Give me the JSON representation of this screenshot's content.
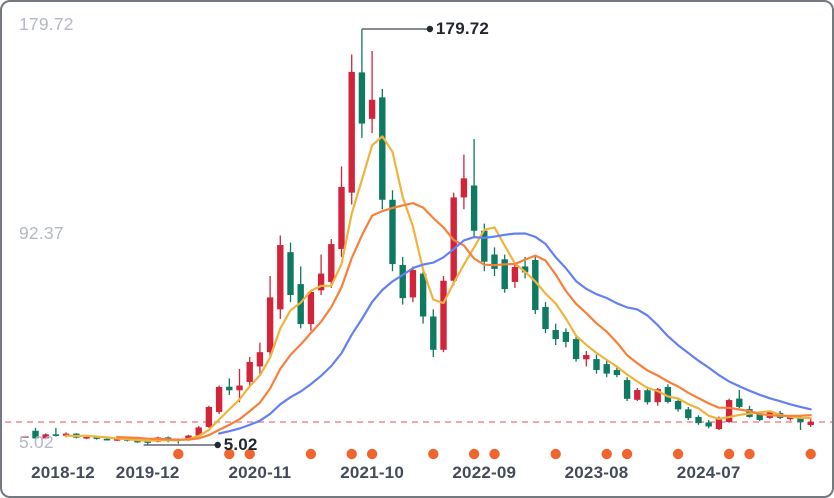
{
  "chart_data": {
    "type": "candlestick",
    "title": "",
    "frequency": "monthly",
    "legend_position": "none",
    "grid": false,
    "y_range": [
      5.02,
      179.72
    ],
    "y_axis_labels": [
      "179.72",
      "92.37",
      "5.02"
    ],
    "x_tick_labels": [
      {
        "index": 0,
        "text": "2018-12"
      },
      {
        "index": 12,
        "text": "2019-12"
      },
      {
        "index": 23,
        "text": "2020-11"
      },
      {
        "index": 34,
        "text": "2021-10"
      },
      {
        "index": 45,
        "text": "2022-09"
      },
      {
        "index": 56,
        "text": "2023-08"
      },
      {
        "index": 67,
        "text": "2024-07"
      }
    ],
    "up_color": "#d2253c",
    "down_color": "#0e7a61",
    "candles": [
      [
        "2018-12",
        8.4,
        8.9,
        8.1,
        8.7
      ],
      [
        "2019-01",
        11.0,
        12.2,
        7.4,
        7.8
      ],
      [
        "2019-02",
        7.8,
        9.9,
        7.5,
        9.5
      ],
      [
        "2019-03",
        9.5,
        12.2,
        8.6,
        8.9
      ],
      [
        "2019-04",
        8.9,
        10.3,
        8.3,
        9.8
      ],
      [
        "2019-05",
        9.8,
        10.0,
        7.8,
        8.1
      ],
      [
        "2019-06",
        8.1,
        8.8,
        7.5,
        8.4
      ],
      [
        "2019-07",
        8.4,
        8.7,
        7.3,
        7.6
      ],
      [
        "2019-08",
        7.6,
        8.0,
        6.9,
        7.2
      ],
      [
        "2019-09",
        7.2,
        7.8,
        6.7,
        7.5
      ],
      [
        "2019-10",
        7.5,
        7.7,
        6.5,
        6.8
      ],
      [
        "2019-11",
        6.8,
        7.1,
        5.9,
        6.2
      ],
      [
        "2019-12",
        6.6,
        6.9,
        5.02,
        6.3
      ],
      [
        "2020-01",
        6.4,
        8.5,
        6.2,
        8.2
      ],
      [
        "2020-02",
        8.2,
        8.6,
        6.2,
        7.4
      ],
      [
        "2020-03",
        7.5,
        7.8,
        5.6,
        6.9
      ],
      [
        "2020-04",
        7.0,
        9.3,
        6.8,
        9.0
      ],
      [
        "2020-05",
        9.0,
        13.0,
        8.7,
        12.4
      ],
      [
        "2020-06",
        12.6,
        21.5,
        12.2,
        21.0
      ],
      [
        "2020-07",
        18.9,
        30.0,
        18.0,
        29.4
      ],
      [
        "2020-08",
        29.5,
        33.0,
        26.0,
        28.0
      ],
      [
        "2020-09",
        28.0,
        37.0,
        23.0,
        30.0
      ],
      [
        "2020-10",
        31.5,
        42.0,
        30.0,
        39.9
      ],
      [
        "2020-11",
        38.0,
        48.0,
        35.0,
        44.0
      ],
      [
        "2020-12",
        44.0,
        76.0,
        42.0,
        67.0
      ],
      [
        "2021-01",
        62.0,
        93.0,
        58.0,
        89.0
      ],
      [
        "2021-02",
        86.0,
        90.0,
        65.0,
        68.0
      ],
      [
        "2021-03",
        72.6,
        80.0,
        54.0,
        55.8
      ],
      [
        "2021-04",
        55.8,
        70.0,
        53.0,
        69.3
      ],
      [
        "2021-05",
        70.0,
        85.0,
        68.0,
        77.0
      ],
      [
        "2021-06",
        73.5,
        91.5,
        71.0,
        89.4
      ],
      [
        "2021-07",
        87.3,
        122.0,
        84.0,
        113.4
      ],
      [
        "2021-08",
        111.0,
        169.0,
        106.0,
        161.7
      ],
      [
        "2021-09",
        161.5,
        179.72,
        134.0,
        140.0
      ],
      [
        "2021-10",
        142.0,
        170.5,
        136.0,
        150.0
      ],
      [
        "2021-11",
        151.0,
        154.5,
        104.0,
        108.0
      ],
      [
        "2021-12",
        108.0,
        112.0,
        78.0,
        81.0
      ],
      [
        "2022-01",
        80.6,
        84.0,
        64.0,
        66.7
      ],
      [
        "2022-02",
        67.0,
        80.0,
        65.0,
        78.5
      ],
      [
        "2022-03",
        77.0,
        79.0,
        56.0,
        59.0
      ],
      [
        "2022-04",
        59.0,
        62.0,
        42.0,
        45.0
      ],
      [
        "2022-05",
        45.0,
        76.0,
        44.0,
        74.0
      ],
      [
        "2022-06",
        74.0,
        111.0,
        72.0,
        109.0
      ],
      [
        "2022-07",
        109.0,
        127.0,
        104.0,
        117.0
      ],
      [
        "2022-08",
        114.0,
        133.5,
        92.0,
        95.0
      ],
      [
        "2022-09",
        95.0,
        98.0,
        78.0,
        82.0
      ],
      [
        "2022-10",
        85.0,
        88.0,
        76.0,
        79.0
      ],
      [
        "2022-11",
        83.0,
        85.0,
        69.0,
        70.5
      ],
      [
        "2022-12",
        73.5,
        81.0,
        71.0,
        79.8
      ],
      [
        "2023-01",
        80.0,
        84.0,
        75.0,
        77.5
      ],
      [
        "2023-02",
        82.7,
        84.0,
        60.0,
        61.7
      ],
      [
        "2023-03",
        63.0,
        65.0,
        52.0,
        53.7
      ],
      [
        "2023-04",
        53.3,
        56.0,
        47.0,
        49.5
      ],
      [
        "2023-05",
        52.5,
        54.0,
        46.0,
        48.3
      ],
      [
        "2023-06",
        49.5,
        51.0,
        40.0,
        41.1
      ],
      [
        "2023-07",
        41.0,
        44.5,
        38.0,
        42.8
      ],
      [
        "2023-08",
        41.1,
        43.0,
        35.0,
        36.5
      ],
      [
        "2023-09",
        39.0,
        40.5,
        33.5,
        35.0
      ],
      [
        "2023-10",
        36.5,
        38.0,
        33.5,
        34.4
      ],
      [
        "2023-11",
        32.3,
        33.5,
        23.5,
        24.4
      ],
      [
        "2023-12",
        24.0,
        29.0,
        23.5,
        28.1
      ],
      [
        "2024-01",
        28.0,
        29.5,
        22.0,
        23.0
      ],
      [
        "2024-02",
        23.0,
        29.0,
        21.5,
        28.5
      ],
      [
        "2024-03",
        29.4,
        30.5,
        22.5,
        23.1
      ],
      [
        "2024-04",
        23.5,
        24.5,
        19.0,
        20.0
      ],
      [
        "2024-05",
        20.0,
        21.0,
        15.5,
        16.3
      ],
      [
        "2024-06",
        16.8,
        17.5,
        13.5,
        14.2
      ],
      [
        "2024-07",
        14.5,
        15.5,
        12.0,
        12.8
      ],
      [
        "2024-08",
        11.7,
        17.0,
        11.3,
        16.5
      ],
      [
        "2024-09",
        14.7,
        24.5,
        14.3,
        23.9
      ],
      [
        "2024-10",
        24.5,
        28.1,
        20.5,
        21.0
      ],
      [
        "2024-11",
        20.1,
        21.5,
        16.5,
        16.8
      ],
      [
        "2024-12",
        18.0,
        18.9,
        15.0,
        15.5
      ],
      [
        "2025-01",
        16.4,
        19.0,
        16.0,
        18.9
      ],
      [
        "2025-02",
        18.5,
        19.3,
        15.9,
        16.4
      ],
      [
        "2025-03",
        15.9,
        17.2,
        15.2,
        16.8
      ],
      [
        "2025-04",
        16.8,
        17.6,
        11.3,
        14.7
      ],
      [
        "2025-05",
        13.4,
        16.4,
        12.6,
        14.7
      ]
    ],
    "moving_averages": [
      {
        "period": 5,
        "color": "#f0b43c"
      },
      {
        "period": 10,
        "color": "#f8803a"
      },
      {
        "period": 20,
        "color": "#6580f5"
      }
    ],
    "reference_line": {
      "value": 14.7,
      "color": "#f4a6ab",
      "style": "dashed"
    },
    "high_annotation": {
      "text": "179.72",
      "index": 33,
      "value": 179.72
    },
    "low_annotation": {
      "text": "5.02",
      "index": 12,
      "value": 5.02
    },
    "annotation_line_color": "#5f6570",
    "event_marker_indices": [
      15,
      20,
      22,
      28,
      32,
      34,
      40,
      44,
      46,
      52,
      57,
      59,
      64,
      69,
      71,
      77
    ],
    "event_marker_color": "#f0642f"
  }
}
